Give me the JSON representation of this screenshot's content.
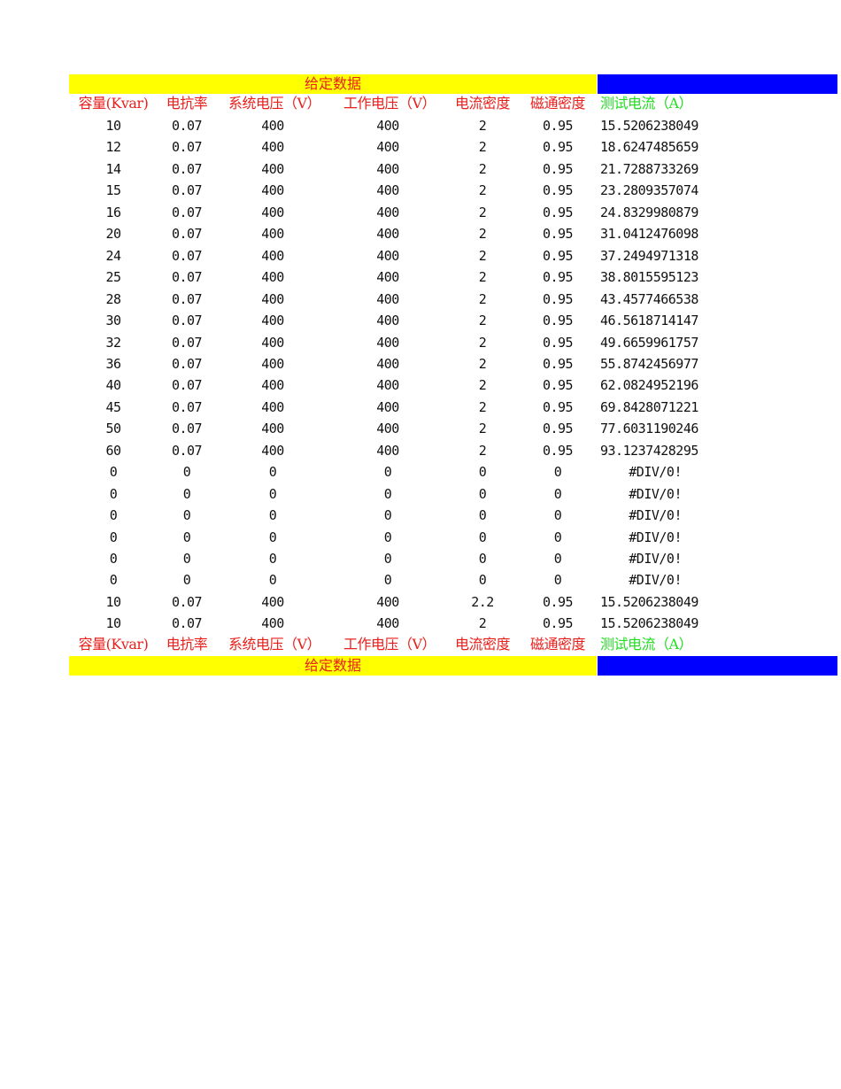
{
  "title": "给定数据",
  "headers": [
    "容量(Kvar)",
    "电抗率",
    "系统电压（V）",
    "工作电压（V）",
    "电流密度",
    "磁通密度",
    "测试电流（A）"
  ],
  "rows": [
    [
      "10",
      "0.07",
      "400",
      "400",
      "2",
      "0.95",
      "15.5206238049"
    ],
    [
      "12",
      "0.07",
      "400",
      "400",
      "2",
      "0.95",
      "18.6247485659"
    ],
    [
      "14",
      "0.07",
      "400",
      "400",
      "2",
      "0.95",
      "21.7288733269"
    ],
    [
      "15",
      "0.07",
      "400",
      "400",
      "2",
      "0.95",
      "23.2809357074"
    ],
    [
      "16",
      "0.07",
      "400",
      "400",
      "2",
      "0.95",
      "24.8329980879"
    ],
    [
      "20",
      "0.07",
      "400",
      "400",
      "2",
      "0.95",
      "31.0412476098"
    ],
    [
      "24",
      "0.07",
      "400",
      "400",
      "2",
      "0.95",
      "37.2494971318"
    ],
    [
      "25",
      "0.07",
      "400",
      "400",
      "2",
      "0.95",
      "38.8015595123"
    ],
    [
      "28",
      "0.07",
      "400",
      "400",
      "2",
      "0.95",
      "43.4577466538"
    ],
    [
      "30",
      "0.07",
      "400",
      "400",
      "2",
      "0.95",
      "46.5618714147"
    ],
    [
      "32",
      "0.07",
      "400",
      "400",
      "2",
      "0.95",
      "49.6659961757"
    ],
    [
      "36",
      "0.07",
      "400",
      "400",
      "2",
      "0.95",
      "55.8742456977"
    ],
    [
      "40",
      "0.07",
      "400",
      "400",
      "2",
      "0.95",
      "62.0824952196"
    ],
    [
      "45",
      "0.07",
      "400",
      "400",
      "2",
      "0.95",
      "69.8428071221"
    ],
    [
      "50",
      "0.07",
      "400",
      "400",
      "2",
      "0.95",
      "77.6031190246"
    ],
    [
      "60",
      "0.07",
      "400",
      "400",
      "2",
      "0.95",
      "93.1237428295"
    ],
    [
      "0",
      "0",
      "0",
      "0",
      "0",
      "0",
      "#DIV/0!"
    ],
    [
      "0",
      "0",
      "0",
      "0",
      "0",
      "0",
      "#DIV/0!"
    ],
    [
      "0",
      "0",
      "0",
      "0",
      "0",
      "0",
      "#DIV/0!"
    ],
    [
      "0",
      "0",
      "0",
      "0",
      "0",
      "0",
      "#DIV/0!"
    ],
    [
      "0",
      "0",
      "0",
      "0",
      "0",
      "0",
      "#DIV/0!"
    ],
    [
      "0",
      "0",
      "0",
      "0",
      "0",
      "0",
      "#DIV/0!"
    ],
    [
      "10",
      "0.07",
      "400",
      "400",
      "2.2",
      "0.95",
      "15.5206238049"
    ],
    [
      "10",
      "0.07",
      "400",
      "400",
      "2",
      "0.95",
      "15.5206238049"
    ]
  ],
  "colors": {
    "banner": "#ffff00",
    "accent_bar": "#0000ff",
    "header_text": "#e8201c",
    "result_header_text": "#22dd22"
  }
}
